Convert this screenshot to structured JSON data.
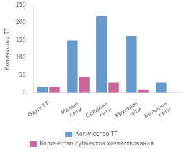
{
  "chart_data": {
    "type": "bar",
    "categories": [
      "Одна ТТ",
      "Малые\nсети",
      "Средние\nсети",
      "Крупные\nсети",
      "Большие\nсети"
    ],
    "series": [
      {
        "name": "Количество ТТ",
        "color": "#6699CC",
        "values": [
          17,
          150,
          220,
          163,
          30
        ]
      },
      {
        "name": "Количество субъектов хозяйствования",
        "color": "#CC6699",
        "values": [
          17,
          45,
          30,
          10,
          0
        ]
      }
    ],
    "ylabel": "Количество ТТ",
    "ylim": [
      0,
      250
    ],
    "yticks": [
      0,
      50,
      100,
      150,
      200,
      250
    ],
    "grid": false,
    "legend": "bottom"
  }
}
